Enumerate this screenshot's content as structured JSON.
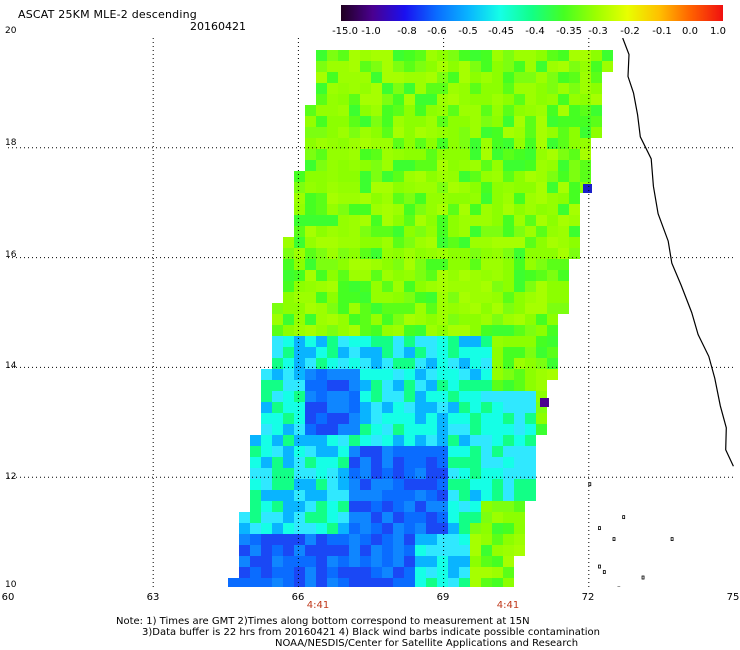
{
  "header": {
    "title": "ASCAT 25KM MLE-2 descending",
    "date": "20160421"
  },
  "colorbar": {
    "labels": [
      "-15.0",
      "-1.0",
      "-0.8",
      "-0.6",
      "-0.5",
      "-0.45",
      "-0.4",
      "-0.35",
      "-0.3",
      "-0.2",
      "-0.1",
      "0.0",
      "1.0"
    ],
    "colors": [
      "#200020",
      "#4a0090",
      "#1a10f0",
      "#0a6cff",
      "#09b4ff",
      "#15ffe6",
      "#12ff86",
      "#45ff22",
      "#9cff00",
      "#e8ff00",
      "#ffc000",
      "#ff6000",
      "#f01010"
    ]
  },
  "map": {
    "lat_labels": [
      "20",
      "18",
      "16",
      "14",
      "12",
      "10"
    ],
    "lon_labels": [
      "60",
      "63",
      "66",
      "69",
      "72",
      "75"
    ],
    "times": [
      "4:41",
      "4:41"
    ],
    "lat_range": [
      10,
      20
    ],
    "lon_range": [
      60,
      75
    ]
  },
  "notes": {
    "line1": "Note: 1) Times are GMT 2)Times along bottom correspond to measurement at 15N",
    "line2": "3)Data buffer is 22 hrs from 20160421 4) Black wind barbs indicate possible contamination",
    "line3": "NOAA/NESDIS/Center for Satellite Applications and Research"
  }
}
